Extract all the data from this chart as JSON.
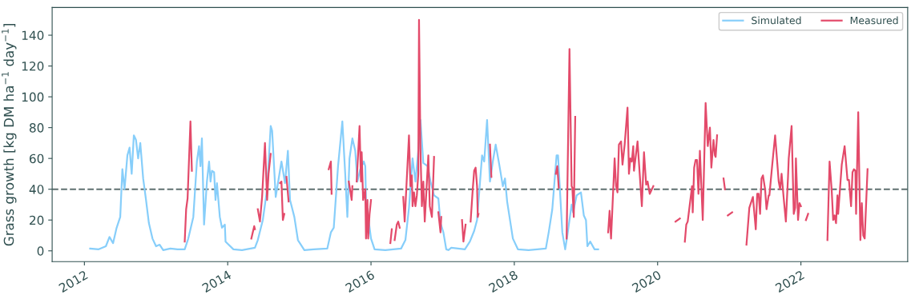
{
  "chart_data": {
    "type": "line",
    "ylabel": "Grass growth [kg DM ha$^{−1}$ day$^{−1}$]",
    "xlim": [
      2011.55,
      2023.49
    ],
    "ylim": [
      -7,
      158
    ],
    "xticks": [
      2012,
      2014,
      2016,
      2018,
      2020,
      2022
    ],
    "yticks": [
      0,
      20,
      40,
      60,
      80,
      100,
      120,
      140
    ],
    "grid": false,
    "legend": "top right",
    "line_style": "solid",
    "marker": "none",
    "ref_lines": [
      {
        "axis": "y",
        "value": 40,
        "color": "#5f7070",
        "line_style": "dashed"
      }
    ],
    "series": [
      {
        "name": "Simulated",
        "color": "#87cefa",
        "x": [
          2012.08,
          2012.2,
          2012.3,
          2012.35,
          2012.4,
          2012.45,
          2012.5,
          2012.53,
          2012.56,
          2012.6,
          2012.63,
          2012.66,
          2012.69,
          2012.72,
          2012.75,
          2012.78,
          2012.82,
          2012.86,
          2012.9,
          2012.95,
          2013.0,
          2013.05,
          2013.1,
          2013.2,
          2013.3,
          2013.4,
          2013.45,
          2013.52,
          2013.57,
          2013.6,
          2013.62,
          2013.64,
          2013.67,
          2013.71,
          2013.74,
          2013.76,
          2013.78,
          2013.81,
          2013.83,
          2013.85,
          2013.89,
          2013.92,
          2013.96,
          2013.97,
          2014.08,
          2014.2,
          2014.38,
          2014.42,
          2014.49,
          2014.55,
          2014.6,
          2014.62,
          2014.67,
          2014.75,
          2014.8,
          2014.84,
          2014.87,
          2014.93,
          2014.98,
          2015.07,
          2015.2,
          2015.39,
          2015.44,
          2015.48,
          2015.54,
          2015.6,
          2015.64,
          2015.67,
          2015.7,
          2015.74,
          2015.78,
          2015.81,
          2015.85,
          2015.9,
          2015.92,
          2015.93,
          2016.0,
          2016.05,
          2016.2,
          2016.42,
          2016.48,
          2016.53,
          2016.58,
          2016.62,
          2016.66,
          2016.69,
          2016.73,
          2016.79,
          2016.83,
          2016.88,
          2016.94,
          2016.97,
          2017.01,
          2017.05,
          2017.08,
          2017.12,
          2017.31,
          2017.38,
          2017.44,
          2017.48,
          2017.51,
          2017.55,
          2017.58,
          2017.62,
          2017.66,
          2017.7,
          2017.74,
          2017.79,
          2017.84,
          2017.87,
          2017.9,
          2017.98,
          2018.05,
          2018.2,
          2018.44,
          2018.48,
          2018.53,
          2018.59,
          2018.61,
          2018.67,
          2018.71,
          2018.74,
          2018.8,
          2018.82,
          2018.87,
          2018.93,
          2018.97,
          2019.0,
          2019.02,
          2019.06,
          2019.12,
          2019.17
        ],
        "values": [
          1.5,
          1,
          3,
          9,
          5,
          15,
          22,
          53,
          40,
          62,
          67,
          50,
          75,
          72,
          60,
          70,
          47,
          33,
          18,
          8,
          3,
          4,
          0.5,
          1.5,
          1,
          1,
          8,
          22,
          58,
          68,
          55,
          73,
          17,
          45,
          58,
          45,
          52,
          51,
          33,
          44,
          22,
          15,
          17,
          6,
          1,
          0.5,
          2,
          7,
          20,
          40,
          81,
          78,
          35,
          58,
          44,
          65,
          33,
          22,
          7,
          0.5,
          1,
          1.5,
          12,
          15,
          55,
          84,
          50,
          22,
          60,
          73,
          65,
          45,
          53,
          58,
          55,
          33,
          8,
          1,
          0.5,
          1.5,
          7,
          28,
          60,
          45,
          65,
          85,
          57,
          55,
          45,
          36,
          34,
          18,
          12,
          1,
          0.5,
          2,
          1,
          6,
          13,
          20,
          38,
          62,
          58,
          85,
          45,
          58,
          69,
          56,
          42,
          47,
          32,
          8,
          1,
          0.5,
          1.5,
          12,
          27,
          62,
          62,
          12,
          1,
          10,
          30,
          25,
          36,
          38,
          23,
          20,
          3,
          6,
          1,
          1
        ]
      },
      {
        "name": "Measured",
        "color": "#e34a6a",
        "x": [
          2013.4,
          2013.42,
          2013.44,
          2013.48,
          2013.5,
          2013.9,
          2014.33,
          2014.37,
          2014.38,
          2014.4,
          2014.42,
          2014.45,
          2014.48,
          2014.52,
          2014.55,
          2014.57,
          2014.6,
          2014.66,
          2014.73,
          2014.75,
          2014.77,
          2014.79,
          2014.8,
          2014.82,
          2014.85,
          2015.1,
          2015.41,
          2015.44,
          2015.45,
          2015.6,
          2015.69,
          2015.73,
          2015.74,
          2015.77,
          2015.8,
          2015.84,
          2015.86,
          2015.87,
          2015.89,
          2015.92,
          2015.93,
          2015.95,
          2015.96,
          2015.98,
          2016.0,
          2016.1,
          2016.27,
          2016.29,
          2016.31,
          2016.33,
          2016.36,
          2016.38,
          2016.4,
          2016.43,
          2016.45,
          2016.47,
          2016.49,
          2016.53,
          2016.55,
          2016.57,
          2016.58,
          2016.6,
          2016.62,
          2016.64,
          2016.66,
          2016.67,
          2016.69,
          2016.71,
          2016.73,
          2016.75,
          2016.78,
          2016.8,
          2016.82,
          2016.85,
          2016.88,
          2016.91,
          2016.94,
          2016.97,
          2016.98,
          2017.1,
          2017.27,
          2017.29,
          2017.32,
          2017.35,
          2017.39,
          2017.42,
          2017.44,
          2017.46,
          2017.48,
          2017.49,
          2017.5,
          2017.6,
          2017.66,
          2017.68,
          2018.0,
          2018.58,
          2018.6,
          2018.62,
          2018.68,
          2018.73,
          2018.77,
          2018.8,
          2018.81,
          2018.83,
          2018.85,
          2019.1,
          2019.31,
          2019.33,
          2019.35,
          2019.4,
          2019.42,
          2019.44,
          2019.46,
          2019.49,
          2019.51,
          2019.54,
          2019.58,
          2019.6,
          2019.62,
          2019.64,
          2019.66,
          2019.67,
          2019.72,
          2019.75,
          2019.78,
          2019.81,
          2019.84,
          2019.86,
          2019.89,
          2019.94,
          2020.1,
          2020.25,
          2020.31,
          2020.34,
          2020.38,
          2020.4,
          2020.42,
          2020.47,
          2020.48,
          2020.49,
          2020.51,
          2020.53,
          2020.55,
          2020.57,
          2020.59,
          2020.63,
          2020.67,
          2020.7,
          2020.73,
          2020.75,
          2020.78,
          2020.8,
          2020.81,
          2020.83,
          2020.88,
          2020.92,
          2020.94,
          2020.96,
          2020.98,
          2021.04,
          2021.1,
          2021.24,
          2021.28,
          2021.33,
          2021.37,
          2021.39,
          2021.41,
          2021.43,
          2021.45,
          2021.47,
          2021.5,
          2021.52,
          2021.55,
          2021.56,
          2021.6,
          2021.64,
          2021.67,
          2021.69,
          2021.71,
          2021.73,
          2021.76,
          2021.79,
          2021.82,
          2021.83,
          2021.87,
          2021.9,
          2021.92,
          2021.93,
          2021.96,
          2021.98,
          2022.0,
          2022.03,
          2022.07,
          2022.1,
          2022.2,
          2022.37,
          2022.4,
          2022.43,
          2022.45,
          2022.47,
          2022.49,
          2022.51,
          2022.52,
          2022.57,
          2022.61,
          2022.65,
          2022.67,
          2022.7,
          2022.72,
          2022.74,
          2022.76,
          2022.77,
          2022.8,
          2022.83,
          2022.85,
          2022.87,
          2022.89,
          2022.93
        ],
        "values": [
          6,
          27,
          34,
          84,
          52,
          null,
          8,
          16,
          14,
          null,
          27,
          19,
          35,
          70,
          33,
          50,
          63,
          null,
          44,
          45,
          20,
          24,
          null,
          48,
          32,
          null,
          53,
          58,
          37,
          null,
          45,
          33,
          42,
          null,
          45,
          81,
          45,
          64,
          33,
          40,
          8,
          33,
          8,
          24,
          33,
          null,
          5,
          14,
          null,
          7,
          17,
          19,
          15,
          null,
          35,
          19,
          38,
          75,
          42,
          49,
          29,
          38,
          29,
          36,
          50,
          150,
          66,
          29,
          45,
          19,
          45,
          62,
          29,
          22,
          61,
          null,
          25,
          12,
          22,
          null,
          20,
          6,
          17,
          null,
          19,
          40,
          52,
          54,
          42,
          22,
          24,
          null,
          69,
          48,
          null,
          50,
          55,
          41,
          null,
          8,
          131,
          42,
          41,
          22,
          87,
          null,
          12,
          26,
          8,
          60,
          42,
          38,
          69,
          71,
          56,
          69,
          93,
          50,
          60,
          58,
          68,
          52,
          71,
          50,
          29,
          64,
          43,
          45,
          37,
          42,
          null,
          19,
          21,
          null,
          6,
          17,
          19,
          38,
          42,
          25,
          54,
          59,
          59,
          37,
          65,
          20,
          96,
          68,
          80,
          54,
          72,
          62,
          61,
          75,
          null,
          47,
          40,
          null,
          23,
          25,
          null,
          4,
          28,
          35,
          14,
          37,
          37,
          24,
          47,
          49,
          40,
          27,
          36,
          36,
          56,
          75,
          57,
          45,
          40,
          50,
          34,
          19,
          48,
          60,
          81,
          24,
          28,
          60,
          20,
          31,
          29,
          null,
          20,
          24,
          null,
          7,
          58,
          39,
          20,
          23,
          18,
          36,
          24,
          56,
          68,
          46,
          46,
          29,
          51,
          53,
          52,
          24,
          90,
          7,
          31,
          10,
          8,
          53
        ]
      }
    ]
  }
}
